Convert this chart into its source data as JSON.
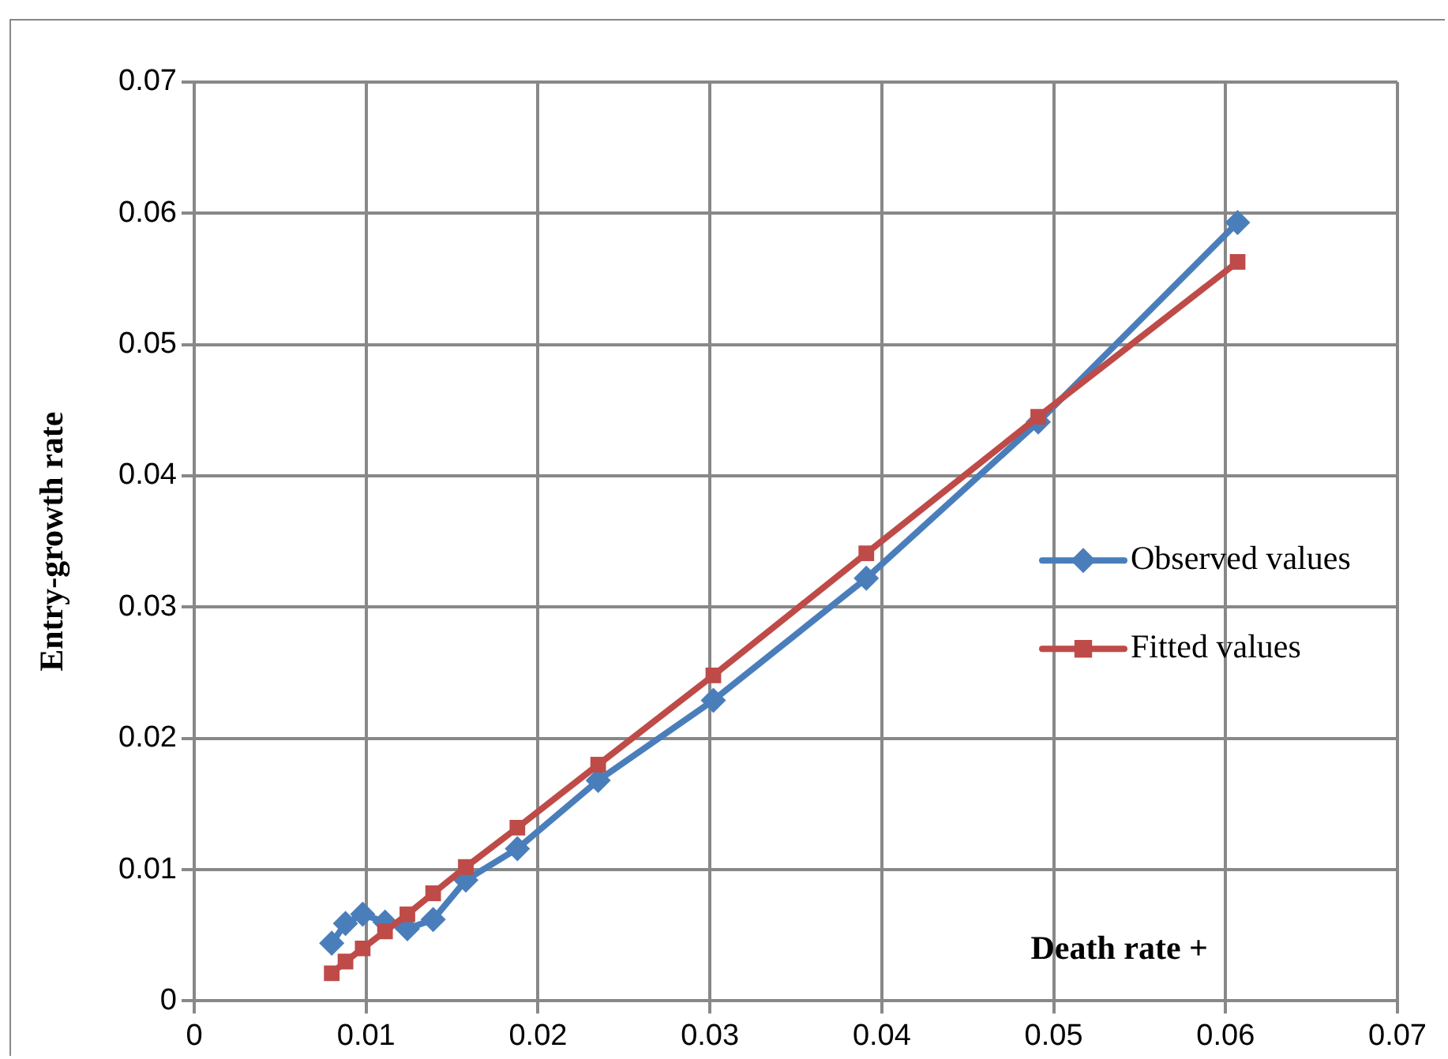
{
  "chart_data": {
    "type": "line",
    "ylabel": "Entry-growth rate",
    "xlabel": "Death rate +",
    "x": [
      0.008,
      0.0088,
      0.0098,
      0.0111,
      0.0124,
      0.0139,
      0.0158,
      0.0188,
      0.0235,
      0.0302,
      0.0391,
      0.0491,
      0.0607
    ],
    "series": [
      {
        "name": "Observed values",
        "color": "#4a7ebb",
        "marker": "diamond",
        "values": [
          0.0044,
          0.0059,
          0.0066,
          0.006,
          0.0055,
          0.0062,
          0.0092,
          0.0116,
          0.0168,
          0.0229,
          0.0322,
          0.0441,
          0.0593
        ]
      },
      {
        "name": "Fitted values",
        "color": "#be4b48",
        "marker": "square",
        "values": [
          0.0021,
          0.003,
          0.004,
          0.0053,
          0.0066,
          0.0082,
          0.0102,
          0.0132,
          0.018,
          0.0248,
          0.0341,
          0.0445,
          0.0563
        ]
      }
    ],
    "xlim": [
      0,
      0.07
    ],
    "xticks": [
      0,
      0.01,
      0.02,
      0.03,
      0.04,
      0.05,
      0.06,
      0.07
    ],
    "ylim": [
      0,
      0.07
    ],
    "yticks": [
      0,
      0.01,
      0.02,
      0.03,
      0.04,
      0.05,
      0.06,
      0.07
    ],
    "grid": true,
    "legend": "right"
  }
}
